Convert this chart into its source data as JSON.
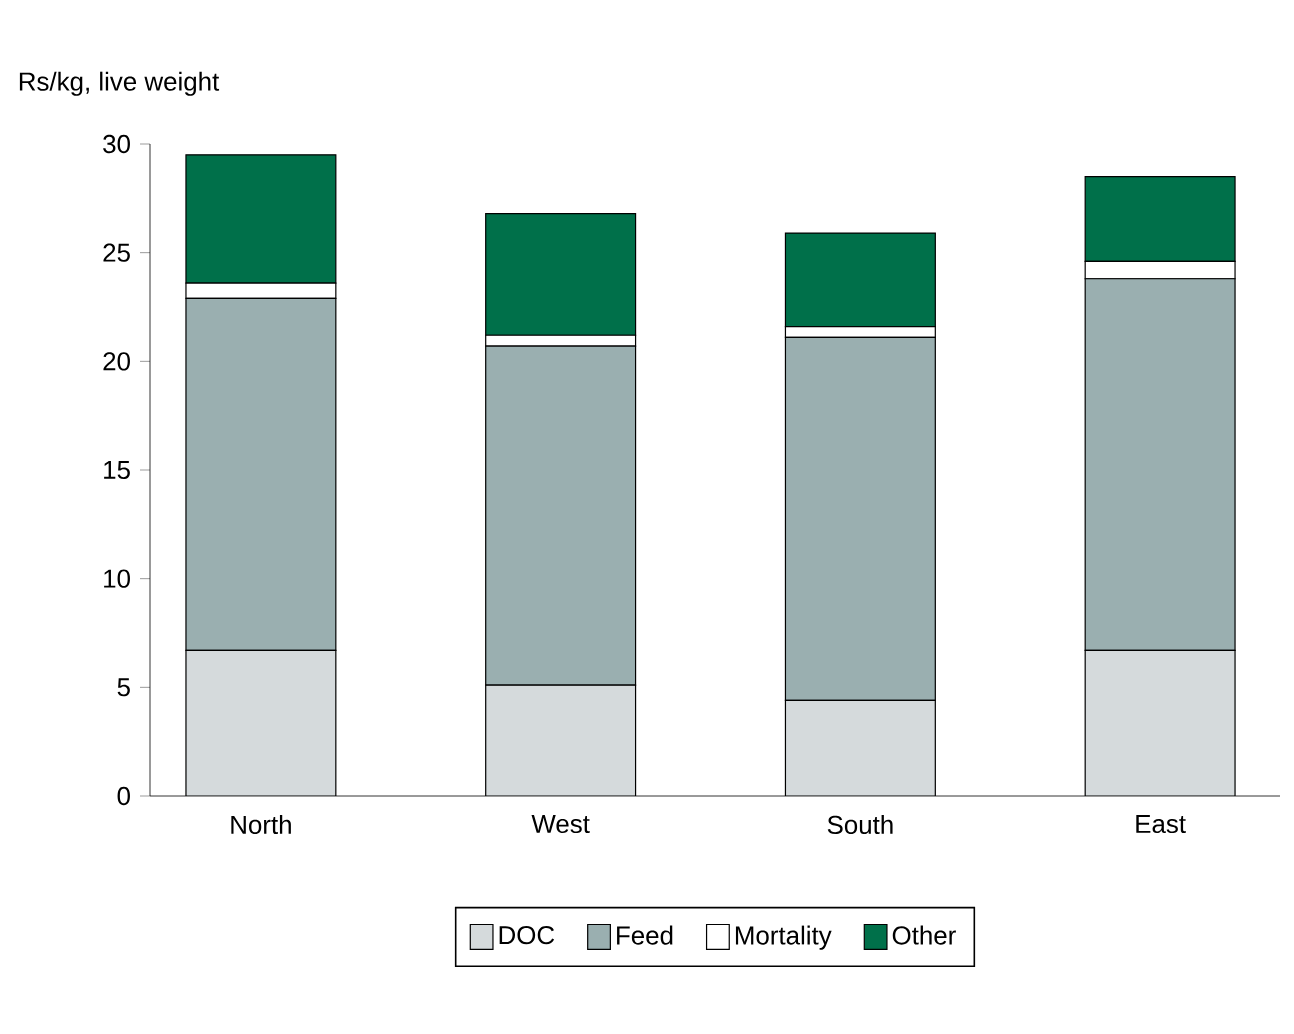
{
  "chart_data": {
    "type": "bar",
    "stacked": true,
    "ylabel": "Rs/kg, live weight",
    "categories": [
      "North",
      "West",
      "South",
      "East"
    ],
    "series": [
      {
        "name": "DOC",
        "color": "#d5dadc",
        "values": [
          6.7,
          5.1,
          4.4,
          6.7
        ]
      },
      {
        "name": "Feed",
        "color": "#9aafb0",
        "values": [
          16.2,
          15.6,
          16.7,
          17.1
        ]
      },
      {
        "name": "Mortality",
        "color": "#ffffff",
        "values": [
          0.7,
          0.5,
          0.5,
          0.8
        ]
      },
      {
        "name": "Other",
        "color": "#00704a",
        "values": [
          5.9,
          5.6,
          4.3,
          3.9
        ]
      }
    ],
    "ylim": [
      0,
      30
    ],
    "yticks": [
      0,
      5,
      10,
      15,
      20,
      25,
      30
    ],
    "legend": "bottom",
    "grid": false
  }
}
